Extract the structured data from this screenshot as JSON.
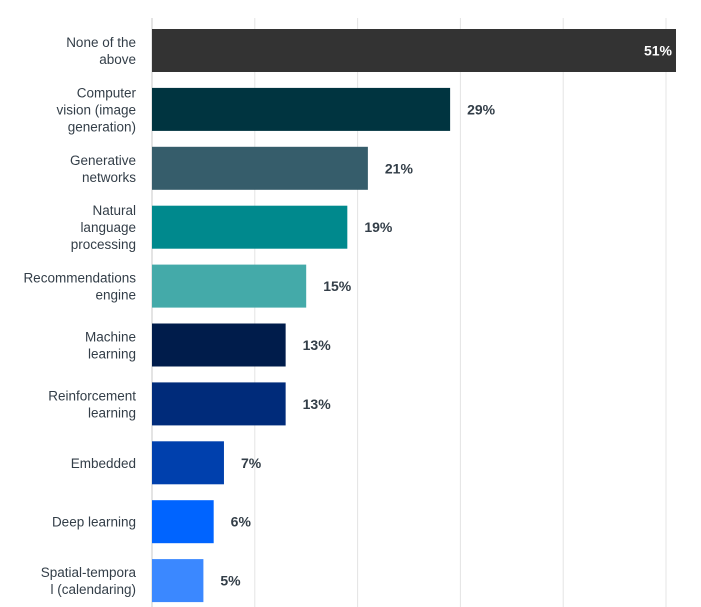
{
  "chart_data": {
    "type": "bar",
    "orientation": "horizontal",
    "title": "",
    "xlabel": "",
    "ylabel": "",
    "xlim": [
      0,
      50
    ],
    "grid": true,
    "categories": [
      [
        "None of the",
        "above"
      ],
      [
        "Computer",
        "vision (image",
        "generation)"
      ],
      [
        "Generative",
        "networks"
      ],
      [
        "Natural",
        "language",
        "processing"
      ],
      [
        "Recommendations",
        "engine"
      ],
      [
        "Machine",
        "learning"
      ],
      [
        "Reinforcement",
        "learning"
      ],
      [
        "Embedded"
      ],
      [
        "Deep learning"
      ],
      [
        "Spatial-tempora",
        "l (calendaring)"
      ]
    ],
    "values": [
      51,
      29,
      21,
      19,
      15,
      13,
      13,
      7,
      6,
      5
    ],
    "value_labels": [
      "51%",
      "29%",
      "21%",
      "19%",
      "15%",
      "13%",
      "13%",
      "7%",
      "6%",
      "5%"
    ],
    "colors": [
      "#333333",
      "#003440",
      "#365d6b",
      "#00898d",
      "#44aaa9",
      "#001c4b",
      "#002b7a",
      "#0040ad",
      "#0064ff",
      "#3b88ff"
    ]
  }
}
